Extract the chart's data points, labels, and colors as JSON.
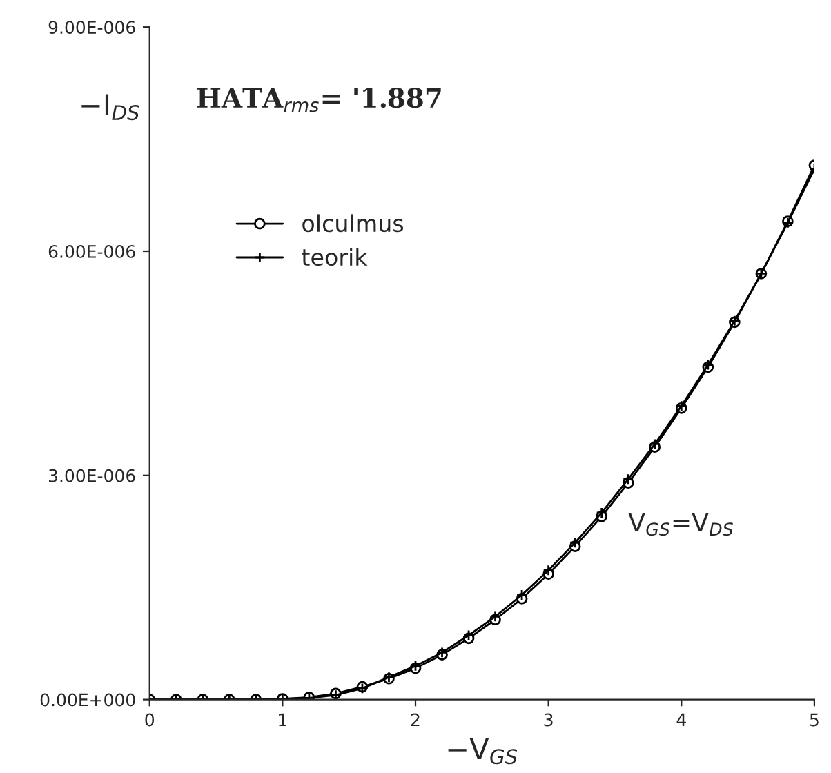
{
  "chart_data": {
    "type": "line",
    "xlabel": "−V$_{GS}$",
    "ylabel": "−I$_{DS}$",
    "annotations": [
      "HATA$_{rms}$= '1.887",
      "V$_{GS}$=V$_{DS}$"
    ],
    "x": [
      0,
      0.2,
      0.4,
      0.6,
      0.8,
      1.0,
      1.2,
      1.4,
      1.6,
      1.8,
      2.0,
      2.2,
      2.4,
      2.6,
      2.8,
      3.0,
      3.2,
      3.4,
      3.6,
      3.8,
      4.0,
      4.2,
      4.4,
      4.6,
      4.8,
      5.0
    ],
    "series": [
      {
        "name": "olculmus",
        "color": "#000000",
        "marker": "circle",
        "values": [
          0,
          0,
          0,
          0,
          0,
          1e-08,
          3e-08,
          8e-08,
          1.7e-07,
          2.8e-07,
          4.2e-07,
          6e-07,
          8.2e-07,
          1.07e-06,
          1.35e-06,
          1.68e-06,
          2.05e-06,
          2.45e-06,
          2.9e-06,
          3.38e-06,
          3.9e-06,
          4.45e-06,
          5.05e-06,
          5.7e-06,
          6.4e-06,
          7.15e-06
        ]
      },
      {
        "name": "teorik",
        "color": "#000000",
        "marker": "cross",
        "values": [
          0,
          0,
          0,
          0,
          0,
          1e-08,
          2e-08,
          6e-08,
          1.5e-07,
          3e-07,
          4.5e-07,
          6.3e-07,
          8.6e-07,
          1.11e-06,
          1.4e-06,
          1.73e-06,
          2.1e-06,
          2.5e-06,
          2.95e-06,
          3.42e-06,
          3.93e-06,
          4.48e-06,
          5.07e-06,
          5.7e-06,
          6.38e-06,
          7.1e-06
        ]
      }
    ],
    "xlim": [
      0,
      5
    ],
    "xticks": [
      0,
      1,
      2,
      3,
      4,
      5
    ],
    "ylim": [
      0,
      9e-06
    ],
    "yticks": [
      {
        "value": 0,
        "label": "0.00E+000"
      },
      {
        "value": 3e-06,
        "label": "3.00E-006"
      },
      {
        "value": 6e-06,
        "label": "6.00E-006"
      },
      {
        "value": 9e-06,
        "label": "9.00E-006"
      }
    ],
    "grid": false,
    "legend": "left",
    "line_style": "solid"
  }
}
